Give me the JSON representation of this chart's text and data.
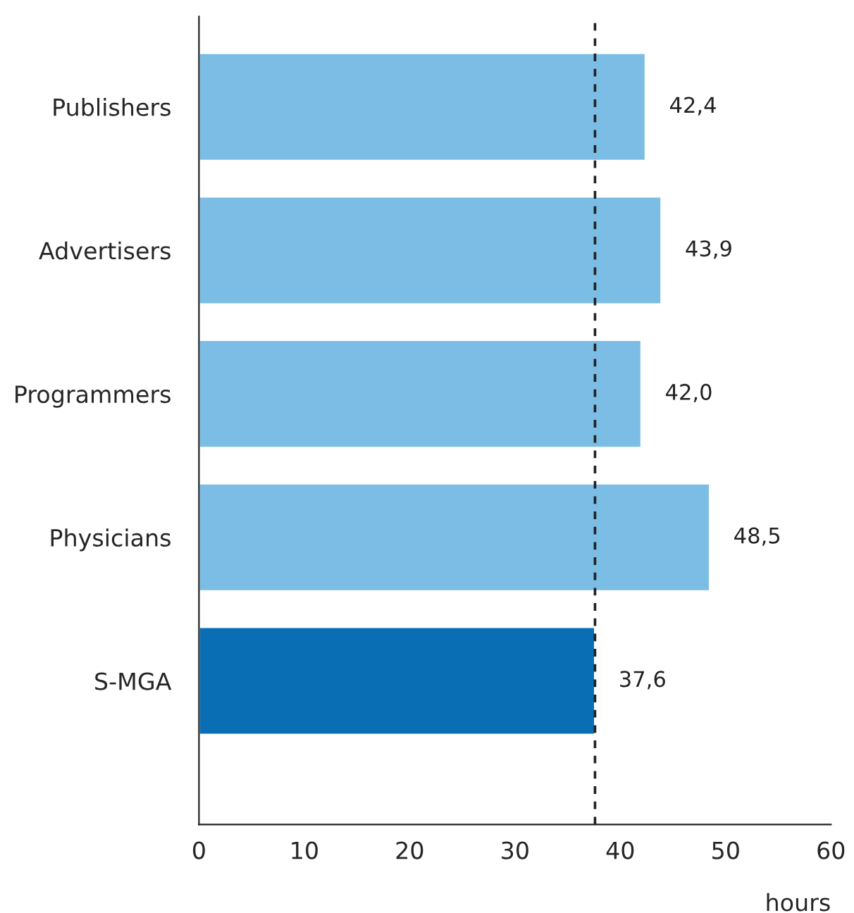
{
  "chart_data": {
    "type": "bar",
    "orientation": "horizontal",
    "categories": [
      "Publishers",
      "Advertisers",
      "Programmers",
      "Physicians",
      "S-MGA"
    ],
    "values": [
      42.4,
      43.9,
      42.0,
      48.5,
      37.6
    ],
    "value_labels": [
      "42,4",
      "43,9",
      "42,0",
      "48,5",
      "37,6"
    ],
    "colors": [
      "#7bbde4",
      "#7bbde4",
      "#7bbde4",
      "#7bbde4",
      "#0a6eb4"
    ],
    "xlim": [
      0,
      60
    ],
    "xticks": [
      0,
      10,
      20,
      30,
      40,
      50,
      60
    ],
    "xlabel": "hours",
    "ref_lines": [
      {
        "axis": "x",
        "value": 37.6,
        "color": "#222222",
        "line_style": "dashed"
      }
    ],
    "grid": false
  }
}
